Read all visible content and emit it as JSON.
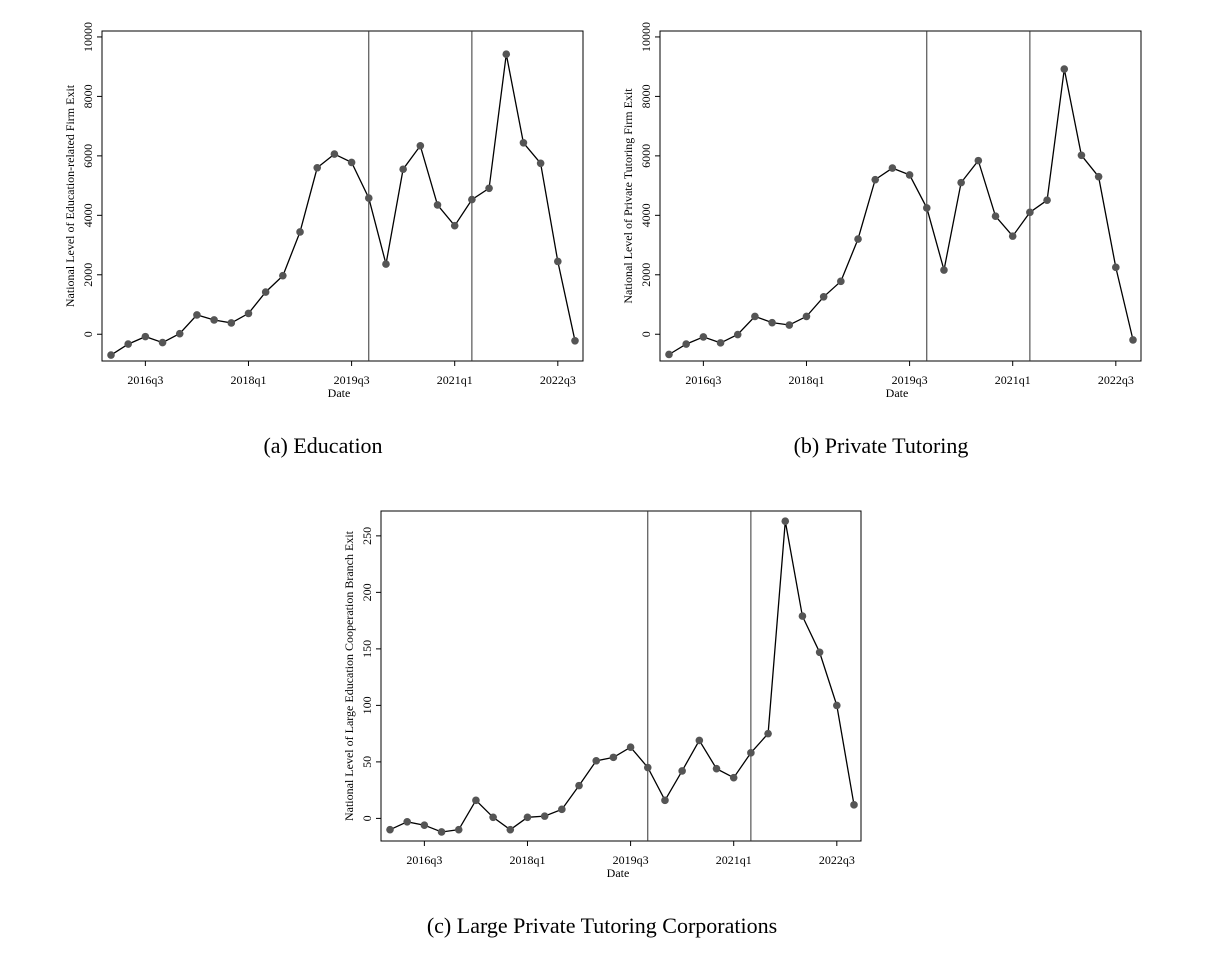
{
  "figure": {
    "panels": [
      {
        "caption": "(a)  Education"
      },
      {
        "caption": "(b)  Private Tutoring"
      },
      {
        "caption": "(c)  Large Private Tutoring Corporations"
      }
    ]
  },
  "chart_data": [
    {
      "type": "line",
      "xlabel": "Date",
      "ylabel": "National Level of Education-related Firm Exit",
      "x": [
        "2016q1",
        "2016q2",
        "2016q3",
        "2016q4",
        "2017q1",
        "2017q2",
        "2017q3",
        "2017q4",
        "2018q1",
        "2018q2",
        "2018q3",
        "2018q4",
        "2019q1",
        "2019q2",
        "2019q3",
        "2019q4",
        "2020q1",
        "2020q2",
        "2020q3",
        "2020q4",
        "2021q1",
        "2021q2",
        "2021q3",
        "2021q4",
        "2022q1",
        "2022q2",
        "2022q3",
        "2022q4"
      ],
      "values": [
        -700,
        -330,
        -80,
        -280,
        20,
        650,
        480,
        380,
        700,
        1420,
        1970,
        3440,
        5600,
        6060,
        5780,
        4580,
        2360,
        5550,
        6340,
        4350,
        3650,
        4530,
        4910,
        9420,
        6440,
        5750,
        2450,
        -220
      ],
      "x_ticks": [
        "2016q3",
        "2018q1",
        "2019q3",
        "2021q1",
        "2022q3"
      ],
      "y_ticks": [
        "0",
        "2000",
        "4000",
        "6000",
        "8000",
        "10000"
      ],
      "ylim": [
        -900,
        10200
      ],
      "vlines": [
        "2019q4",
        "2021q2"
      ],
      "grid": false,
      "marker_color": "#555555",
      "line_color": "#000000"
    },
    {
      "type": "line",
      "xlabel": "Date",
      "ylabel": "National Level of Private Tutoring Firm Exit",
      "x": [
        "2016q1",
        "2016q2",
        "2016q3",
        "2016q4",
        "2017q1",
        "2017q2",
        "2017q3",
        "2017q4",
        "2018q1",
        "2018q2",
        "2018q3",
        "2018q4",
        "2019q1",
        "2019q2",
        "2019q3",
        "2019q4",
        "2020q1",
        "2020q2",
        "2020q3",
        "2020q4",
        "2021q1",
        "2021q2",
        "2021q3",
        "2021q4",
        "2022q1",
        "2022q2",
        "2022q3",
        "2022q4"
      ],
      "values": [
        -680,
        -330,
        -90,
        -290,
        -10,
        600,
        390,
        310,
        600,
        1260,
        1780,
        3200,
        5200,
        5590,
        5360,
        4250,
        2160,
        5100,
        5840,
        3970,
        3300,
        4100,
        4510,
        8920,
        6020,
        5300,
        2250,
        -190
      ],
      "x_ticks": [
        "2016q3",
        "2018q1",
        "2019q3",
        "2021q1",
        "2022q3"
      ],
      "y_ticks": [
        "0",
        "2000",
        "4000",
        "6000",
        "8000",
        "10000"
      ],
      "ylim": [
        -900,
        10200
      ],
      "vlines": [
        "2019q4",
        "2021q2"
      ],
      "grid": false,
      "marker_color": "#555555",
      "line_color": "#000000"
    },
    {
      "type": "line",
      "xlabel": "Date",
      "ylabel": "National Level of Large Education Cooperation Branch Exit",
      "x": [
        "2016q1",
        "2016q2",
        "2016q3",
        "2016q4",
        "2017q1",
        "2017q2",
        "2017q3",
        "2017q4",
        "2018q1",
        "2018q2",
        "2018q3",
        "2018q4",
        "2019q1",
        "2019q2",
        "2019q3",
        "2019q4",
        "2020q1",
        "2020q2",
        "2020q3",
        "2020q4",
        "2021q1",
        "2021q2",
        "2021q3",
        "2021q4",
        "2022q1",
        "2022q2",
        "2022q3",
        "2022q4"
      ],
      "values": [
        -10,
        -3,
        -6,
        -12,
        -10,
        16,
        1,
        -10,
        1,
        2,
        8,
        29,
        51,
        54,
        63,
        45,
        16,
        42,
        69,
        44,
        36,
        58,
        75,
        263,
        179,
        147,
        100,
        12
      ],
      "x_ticks": [
        "2016q3",
        "2018q1",
        "2019q3",
        "2021q1",
        "2022q3"
      ],
      "y_ticks": [
        "0",
        "50",
        "100",
        "150",
        "200",
        "250"
      ],
      "ylim": [
        -20,
        272
      ],
      "vlines": [
        "2019q4",
        "2021q2"
      ],
      "grid": false,
      "marker_color": "#555555",
      "line_color": "#000000"
    }
  ]
}
